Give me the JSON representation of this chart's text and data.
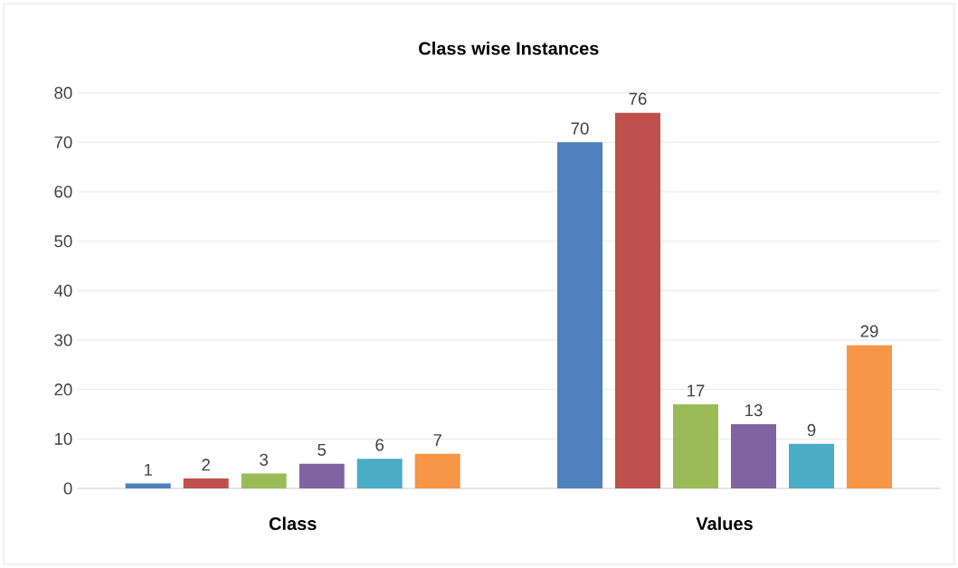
{
  "chart_data": {
    "type": "bar",
    "title": "Class wise Instances",
    "categories": [
      "Class",
      "Values"
    ],
    "series": [
      {
        "color": "#4f81bd",
        "values": [
          1,
          70
        ]
      },
      {
        "color": "#c0504d",
        "values": [
          2,
          76
        ]
      },
      {
        "color": "#9bbb59",
        "values": [
          3,
          17
        ]
      },
      {
        "color": "#8064a2",
        "values": [
          5,
          13
        ]
      },
      {
        "color": "#4bacc6",
        "values": [
          6,
          9
        ]
      },
      {
        "color": "#f79646",
        "values": [
          7,
          29
        ]
      }
    ],
    "ylim": [
      0,
      80
    ],
    "yticks": [
      0,
      10,
      20,
      30,
      40,
      50,
      60,
      70,
      80
    ],
    "grid": "y",
    "data_labels": true
  }
}
